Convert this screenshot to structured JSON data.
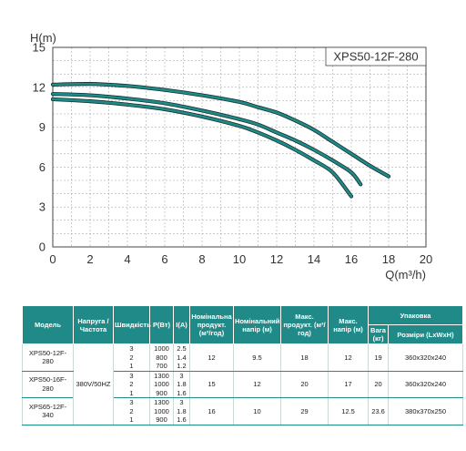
{
  "chart_data": {
    "type": "line",
    "title": "XPS50-12F-280",
    "xlabel": "Q(m³/h)",
    "ylabel": "H(m)",
    "xlim": [
      0,
      20
    ],
    "ylim": [
      0,
      15
    ],
    "xticks": [
      0,
      2,
      4,
      6,
      8,
      10,
      12,
      14,
      16,
      18,
      20
    ],
    "yticks": [
      0,
      3,
      6,
      9,
      12,
      15
    ],
    "grid": true,
    "line_color": "#1f8a87",
    "series": [
      {
        "x": [
          0,
          2,
          4,
          6,
          8,
          10,
          11,
          12,
          13,
          14,
          15,
          16,
          17,
          18
        ],
        "y": [
          12.2,
          12.25,
          12.1,
          11.8,
          11.4,
          10.9,
          10.5,
          10.1,
          9.5,
          8.8,
          7.9,
          7.0,
          6.1,
          5.3
        ]
      },
      {
        "x": [
          0,
          2,
          4,
          6,
          8,
          10,
          11,
          12,
          13,
          14,
          15,
          16,
          16.5
        ],
        "y": [
          11.5,
          11.4,
          11.15,
          10.8,
          10.25,
          9.6,
          9.2,
          8.6,
          8.0,
          7.3,
          6.5,
          5.6,
          4.7
        ]
      },
      {
        "x": [
          0,
          2,
          4,
          6,
          8,
          10,
          11,
          12,
          13,
          14,
          15,
          16
        ],
        "y": [
          11.1,
          10.95,
          10.7,
          10.35,
          9.8,
          9.1,
          8.6,
          8.0,
          7.3,
          6.5,
          5.6,
          3.8
        ]
      }
    ]
  },
  "table": {
    "headers": {
      "model": "Модель",
      "voltage": "Напруга /Частота",
      "speed": "Швидкість",
      "power": "P(Вт)",
      "current": "I(A)",
      "nominal_flow": "Номінальна продукт. (м³/год)",
      "nominal_head": "Номінальний напір (м)",
      "max_flow": "Макс. продукт. (м³/год)",
      "max_head": "Макс. напір (м)",
      "packaging": "Упаковка",
      "weight": "Вага (кг)",
      "dims": "Розміри (LxWxH)"
    },
    "voltage_value": "380V/50HZ",
    "models": [
      {
        "name": "XPS50-12F-280",
        "rows": [
          {
            "speed": "3",
            "power": "1000",
            "current": "2.5"
          },
          {
            "speed": "2",
            "power": "800",
            "current": "1.4"
          },
          {
            "speed": "1",
            "power": "700",
            "current": "1.2"
          }
        ],
        "nominal_flow": "12",
        "nominal_head": "9.5",
        "max_flow": "18",
        "max_head": "12",
        "weight": "19",
        "dims": "360x320x240"
      },
      {
        "name": "XPS50-16F-280",
        "rows": [
          {
            "speed": "3",
            "power": "1300",
            "current": "3"
          },
          {
            "speed": "2",
            "power": "1000",
            "current": "1.8"
          },
          {
            "speed": "1",
            "power": "900",
            "current": "1.6"
          }
        ],
        "nominal_flow": "15",
        "nominal_head": "12",
        "max_flow": "20",
        "max_head": "17",
        "weight": "20",
        "dims": "360x320x240"
      },
      {
        "name": "XPS65-12F-340",
        "rows": [
          {
            "speed": "3",
            "power": "1300",
            "current": "3"
          },
          {
            "speed": "2",
            "power": "1000",
            "current": "1.8"
          },
          {
            "speed": "1",
            "power": "900",
            "current": "1.6"
          }
        ],
        "nominal_flow": "16",
        "nominal_head": "10",
        "max_flow": "29",
        "max_head": "12.5",
        "weight": "23.6",
        "dims": "380x370x250"
      }
    ]
  }
}
